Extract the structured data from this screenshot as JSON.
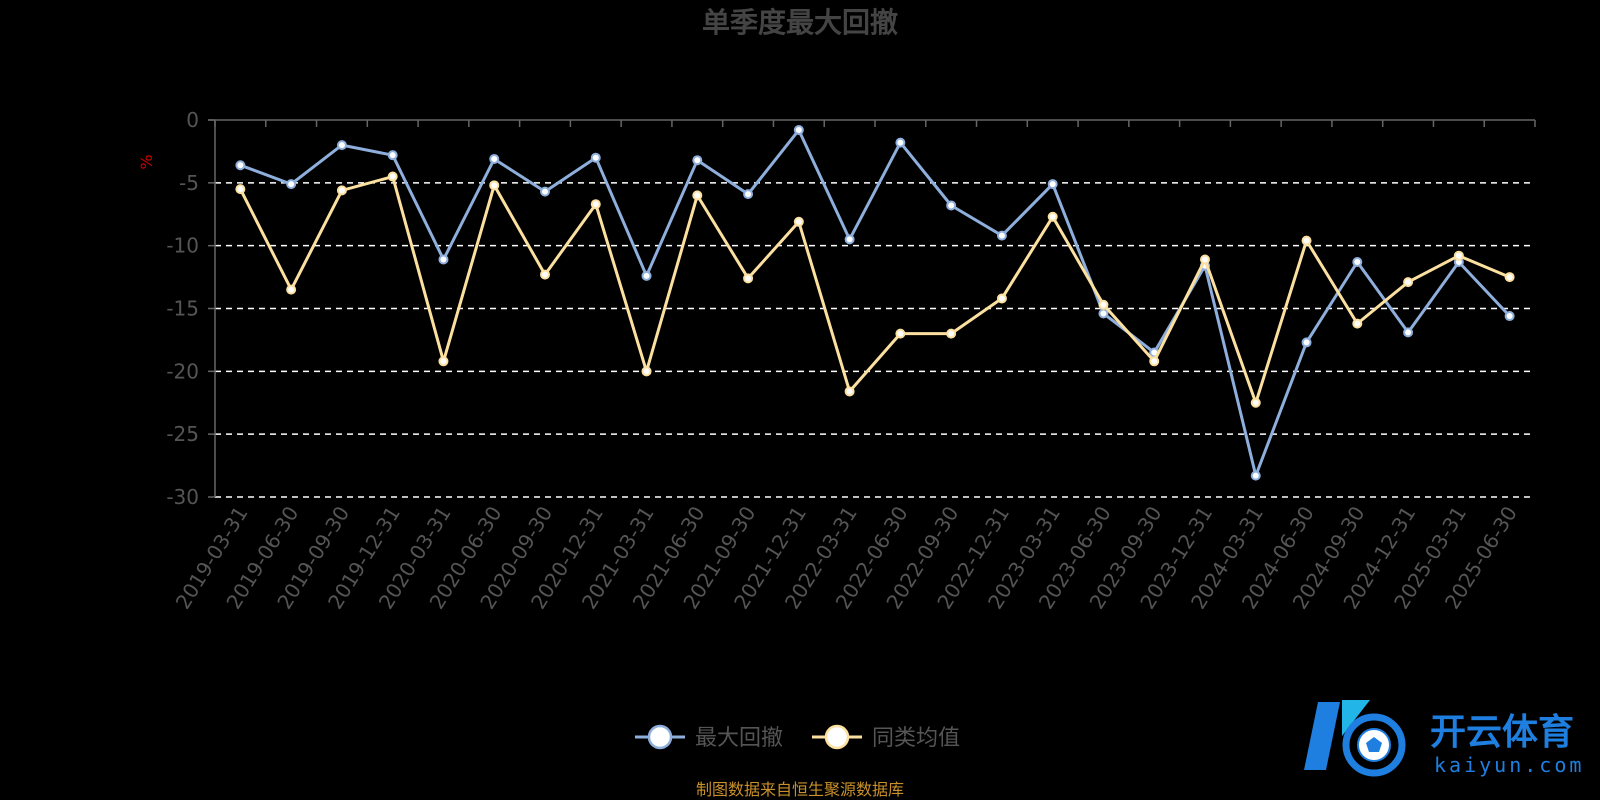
{
  "chart_data": {
    "type": "line",
    "title": "单季度最大回撤",
    "ylabel": "%",
    "ylim": [
      -30,
      0
    ],
    "yticks": [
      0,
      -5,
      -10,
      -15,
      -20,
      -25,
      -30
    ],
    "grid": true,
    "legend_position": "bottom-center",
    "categories": [
      "2019-03-31",
      "2019-06-30",
      "2019-09-30",
      "2019-12-31",
      "2020-03-31",
      "2020-06-30",
      "2020-09-30",
      "2020-12-31",
      "2021-03-31",
      "2021-06-30",
      "2021-09-30",
      "2021-12-31",
      "2022-03-31",
      "2022-06-30",
      "2022-09-30",
      "2022-12-31",
      "2023-03-31",
      "2023-06-30",
      "2023-09-30",
      "2023-12-31",
      "2024-03-31",
      "2024-06-30",
      "2024-09-30",
      "2024-12-31",
      "2025-03-31",
      "2025-06-30"
    ],
    "series": [
      {
        "name": "最大回撤",
        "color": "#8eaedc",
        "values": [
          -3.6,
          -5.1,
          -2.0,
          -2.8,
          -11.1,
          -3.1,
          -5.7,
          -3.0,
          -12.4,
          -3.2,
          -5.9,
          -0.8,
          -9.5,
          -1.8,
          -6.8,
          -9.2,
          -5.1,
          -15.4,
          -18.5,
          -11.6,
          -28.3,
          -17.7,
          -11.3,
          -16.9,
          -11.3,
          -15.6
        ]
      },
      {
        "name": "同类均值",
        "color": "#fce0a0",
        "values": [
          -5.5,
          -13.5,
          -5.6,
          -4.5,
          -19.2,
          -5.2,
          -12.3,
          -6.7,
          -20.0,
          -6.0,
          -12.6,
          -8.1,
          -21.6,
          -17.0,
          -17.0,
          -14.2,
          -7.7,
          -14.7,
          -19.2,
          -11.1,
          -22.5,
          -9.6,
          -16.2,
          -12.9,
          -10.8,
          -12.5
        ]
      }
    ]
  },
  "footer": {
    "source_note": "制图数据来自恒生聚源数据库"
  },
  "watermark": {
    "brand_cn": "开云体育",
    "brand_url": "kaiyun.com",
    "icon": "kaiyun-soccer-logo-icon"
  },
  "colors": {
    "background": "#000000",
    "axis": "#666666",
    "grid": "#ffffff",
    "series_1": "#8eaedc",
    "series_2": "#fce0a0"
  }
}
